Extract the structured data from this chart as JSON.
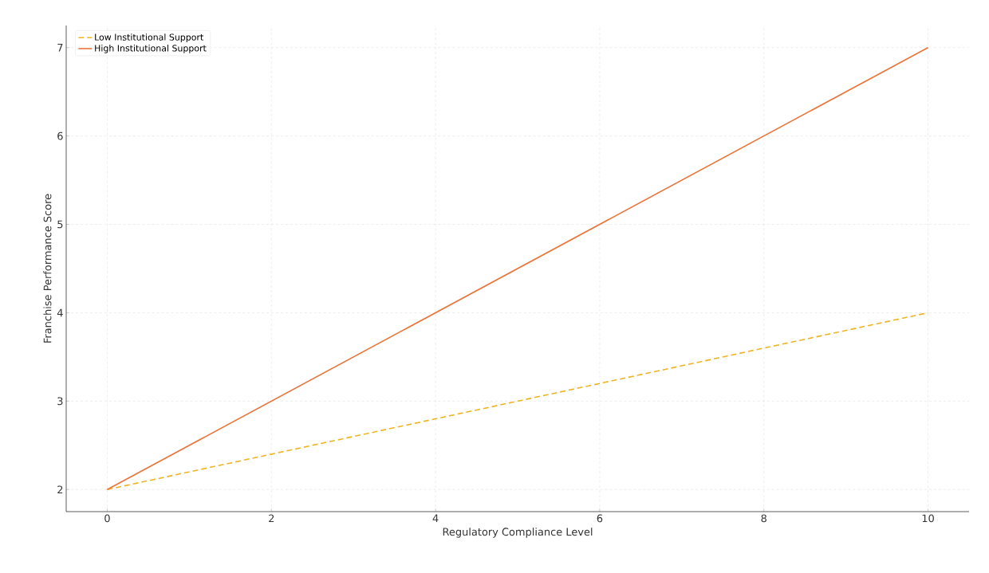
{
  "chart_data": {
    "type": "line",
    "xlabel": "Regulatory Compliance Level",
    "ylabel": "Franchise Performance Score",
    "x": [
      0,
      10
    ],
    "series": [
      {
        "name": "Low Institutional Support",
        "color": "#f0b323",
        "values": [
          2,
          4
        ],
        "line_style": "dashed"
      },
      {
        "name": "High Institutional Support",
        "color": "#e8763a",
        "values": [
          2,
          7
        ],
        "line_style": "solid"
      }
    ],
    "xlim": [
      -0.5,
      10.5
    ],
    "ylim": [
      1.75,
      7.25
    ],
    "xticks": [
      0,
      2,
      4,
      6,
      8,
      10
    ],
    "yticks": [
      2,
      3,
      4,
      5,
      6,
      7
    ],
    "grid": true,
    "legend": "top left",
    "marker": "none"
  }
}
